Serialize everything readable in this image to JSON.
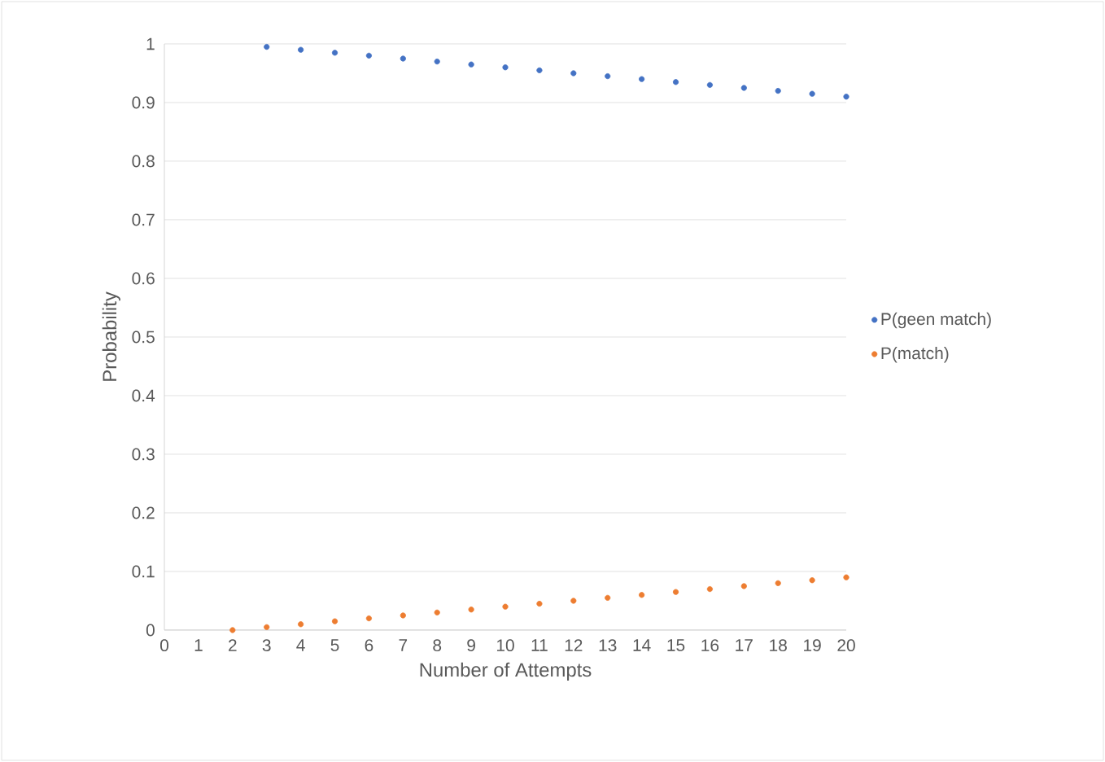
{
  "chart_data": {
    "type": "scatter",
    "xlabel": "Number of Attempts",
    "ylabel": "Probability",
    "xlim": [
      0,
      20
    ],
    "xticks": [
      0,
      1,
      2,
      3,
      4,
      5,
      6,
      7,
      8,
      9,
      10,
      11,
      12,
      13,
      14,
      15,
      16,
      17,
      18,
      19,
      20
    ],
    "ylim": [
      0,
      1
    ],
    "yticks": [
      0,
      0.1,
      0.2,
      0.3,
      0.4,
      0.5,
      0.6,
      0.7,
      0.8,
      0.9,
      1
    ],
    "grid": "y",
    "legend": "right",
    "marker": "circle",
    "series": [
      {
        "name": "P(geen match)",
        "color": "#4472c4",
        "x": [
          3,
          4,
          5,
          6,
          7,
          8,
          9,
          10,
          11,
          12,
          13,
          14,
          15,
          16,
          17,
          18,
          19,
          20
        ],
        "values": [
          0.995,
          0.99,
          0.985,
          0.98,
          0.975,
          0.97,
          0.965,
          0.96,
          0.955,
          0.95,
          0.945,
          0.94,
          0.935,
          0.93,
          0.925,
          0.92,
          0.915,
          0.91
        ]
      },
      {
        "name": "P(match)",
        "color": "#ed7d31",
        "x": [
          2,
          3,
          4,
          5,
          6,
          7,
          8,
          9,
          10,
          11,
          12,
          13,
          14,
          15,
          16,
          17,
          18,
          19,
          20
        ],
        "values": [
          0,
          0.005,
          0.01,
          0.015,
          0.02,
          0.025,
          0.03,
          0.035,
          0.04,
          0.045,
          0.05,
          0.055,
          0.06,
          0.065,
          0.07,
          0.075,
          0.08,
          0.085,
          0.09
        ]
      }
    ]
  }
}
